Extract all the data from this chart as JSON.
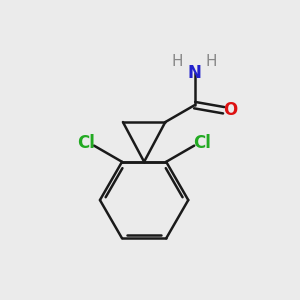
{
  "background_color": "#ebebeb",
  "bond_color": "#1a1a1a",
  "bond_width": 1.8,
  "atom_colors": {
    "N": "#2222cc",
    "O": "#dd1111",
    "Cl": "#22aa22",
    "H": "#888888"
  },
  "font_size_main": 12,
  "font_size_H": 11
}
